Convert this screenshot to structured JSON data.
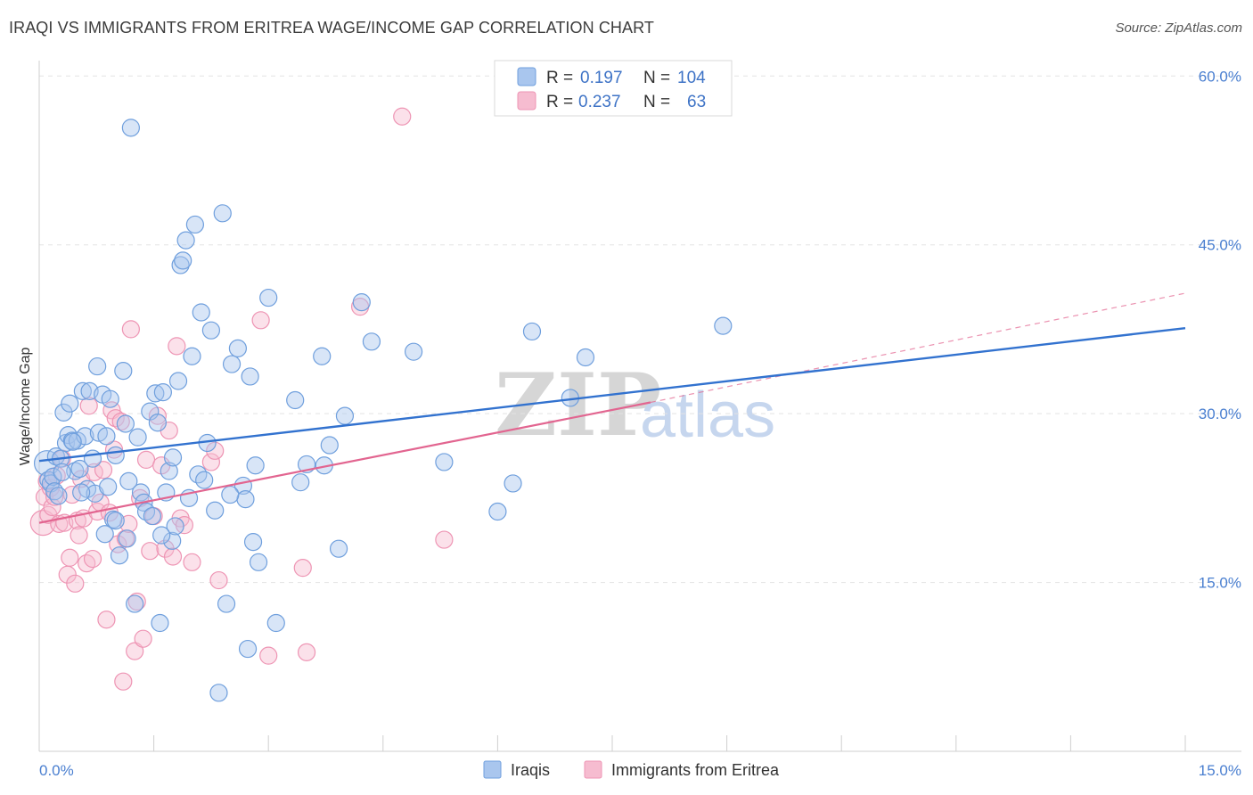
{
  "title": "IRAQI VS IMMIGRANTS FROM ERITREA WAGE/INCOME GAP CORRELATION CHART",
  "source": "Source: ZipAtlas.com",
  "watermark": {
    "part1": "ZIP",
    "part2": "atlas"
  },
  "legend": {
    "r_label": "R =",
    "n_label": "N =",
    "rows": [
      {
        "r": "0.197",
        "n": "104"
      },
      {
        "r": "0.237",
        "n": "63"
      }
    ]
  },
  "bottom_legend": [
    "Iraqis",
    "Immigrants from Eritrea"
  ],
  "colors": {
    "iraqi_fill": "#a9c6ee",
    "iraqi_stroke": "#6f9fdd",
    "iraqi_line": "#3272cf",
    "eritrea_fill": "#f6bcd0",
    "eritrea_stroke": "#ee95b4",
    "eritrea_line": "#e26590",
    "tick_text": "#4a7fd0",
    "grid": "#e3e3e3"
  },
  "chart_data": {
    "type": "scatter",
    "title": "IRAQI VS IMMIGRANTS FROM ERITREA WAGE/INCOME GAP CORRELATION CHART",
    "xlabel": "",
    "ylabel": "Wage/Income Gap",
    "xlim": [
      0,
      15
    ],
    "ylim": [
      0,
      62
    ],
    "x_tick_labels": [
      "0.0%",
      "15.0%"
    ],
    "y_ticks": [
      15,
      30,
      45,
      60
    ],
    "y_tick_labels": [
      "15.0%",
      "30.0%",
      "45.0%",
      "60.0%"
    ],
    "grid": true,
    "legend_position": "top-center",
    "series": [
      {
        "name": "Iraqis",
        "r": 0.197,
        "n": 104,
        "trend": {
          "x": [
            0,
            15
          ],
          "y": [
            25.8,
            37.6
          ]
        },
        "points": [
          [
            0.1,
            25.6
          ],
          [
            0.12,
            24.1
          ],
          [
            0.15,
            23.8
          ],
          [
            0.18,
            24.4
          ],
          [
            0.2,
            23.1
          ],
          [
            0.22,
            26.2
          ],
          [
            0.25,
            22.7
          ],
          [
            0.28,
            26.0
          ],
          [
            0.32,
            30.1
          ],
          [
            0.35,
            27.4
          ],
          [
            0.38,
            28.1
          ],
          [
            0.4,
            30.9
          ],
          [
            0.43,
            27.6
          ],
          [
            0.47,
            24.9
          ],
          [
            0.5,
            27.6
          ],
          [
            0.53,
            25.1
          ],
          [
            0.57,
            32.0
          ],
          [
            0.6,
            28.0
          ],
          [
            0.63,
            23.3
          ],
          [
            0.66,
            32.0
          ],
          [
            0.7,
            26.0
          ],
          [
            0.73,
            22.9
          ],
          [
            0.76,
            34.2
          ],
          [
            0.78,
            28.3
          ],
          [
            0.83,
            31.7
          ],
          [
            0.86,
            19.3
          ],
          [
            0.9,
            23.5
          ],
          [
            0.93,
            31.3
          ],
          [
            0.97,
            20.6
          ],
          [
            1.0,
            26.3
          ],
          [
            1.05,
            17.4
          ],
          [
            1.1,
            33.8
          ],
          [
            1.13,
            29.1
          ],
          [
            1.17,
            24.0
          ],
          [
            1.2,
            55.4
          ],
          [
            1.25,
            13.1
          ],
          [
            1.29,
            27.9
          ],
          [
            1.33,
            23.0
          ],
          [
            1.37,
            22.1
          ],
          [
            1.4,
            21.3
          ],
          [
            1.45,
            30.2
          ],
          [
            1.48,
            20.9
          ],
          [
            1.52,
            31.8
          ],
          [
            1.55,
            29.2
          ],
          [
            1.58,
            11.4
          ],
          [
            1.62,
            31.9
          ],
          [
            1.66,
            23.0
          ],
          [
            1.7,
            24.9
          ],
          [
            1.74,
            18.7
          ],
          [
            1.78,
            20.0
          ],
          [
            1.82,
            32.9
          ],
          [
            1.85,
            43.2
          ],
          [
            1.88,
            43.6
          ],
          [
            1.92,
            45.4
          ],
          [
            1.96,
            22.5
          ],
          [
            2.0,
            35.1
          ],
          [
            2.04,
            46.8
          ],
          [
            2.08,
            24.6
          ],
          [
            2.12,
            39.0
          ],
          [
            2.16,
            24.1
          ],
          [
            2.2,
            27.4
          ],
          [
            2.25,
            37.4
          ],
          [
            2.3,
            21.4
          ],
          [
            2.35,
            5.2
          ],
          [
            2.4,
            47.8
          ],
          [
            2.45,
            13.1
          ],
          [
            2.52,
            34.4
          ],
          [
            2.6,
            35.8
          ],
          [
            2.67,
            23.6
          ],
          [
            2.7,
            22.4
          ],
          [
            2.73,
            9.1
          ],
          [
            2.76,
            33.3
          ],
          [
            2.8,
            18.6
          ],
          [
            2.83,
            25.4
          ],
          [
            2.87,
            16.8
          ],
          [
            3.0,
            40.3
          ],
          [
            3.1,
            11.4
          ],
          [
            3.35,
            31.2
          ],
          [
            3.42,
            23.9
          ],
          [
            3.5,
            25.5
          ],
          [
            3.7,
            35.1
          ],
          [
            3.73,
            25.4
          ],
          [
            3.8,
            27.2
          ],
          [
            3.92,
            18.0
          ],
          [
            4.0,
            29.8
          ],
          [
            4.22,
            39.9
          ],
          [
            4.35,
            36.4
          ],
          [
            4.9,
            35.5
          ],
          [
            5.3,
            25.7
          ],
          [
            6.0,
            21.3
          ],
          [
            6.2,
            23.8
          ],
          [
            6.45,
            37.3
          ],
          [
            6.95,
            31.4
          ],
          [
            7.15,
            35.0
          ],
          [
            8.95,
            37.8
          ],
          [
            0.44,
            27.5
          ],
          [
            0.3,
            24.8
          ],
          [
            1.0,
            20.5
          ],
          [
            1.15,
            18.9
          ],
          [
            0.88,
            28.0
          ],
          [
            1.6,
            19.2
          ],
          [
            0.55,
            23.0
          ],
          [
            2.5,
            22.8
          ],
          [
            1.75,
            26.1
          ]
        ]
      },
      {
        "name": "Immigrants from Eritrea",
        "r": 0.237,
        "n": 63,
        "trend": {
          "x": [
            0,
            8.0
          ],
          "y": [
            20.3,
            31.0
          ]
        },
        "trend_dashed": {
          "x": [
            8.0,
            15
          ],
          "y": [
            31.0,
            40.7
          ]
        },
        "points": [
          [
            0.05,
            20.3
          ],
          [
            0.07,
            22.6
          ],
          [
            0.1,
            24.0
          ],
          [
            0.12,
            21.0
          ],
          [
            0.15,
            23.4
          ],
          [
            0.17,
            21.7
          ],
          [
            0.2,
            22.6
          ],
          [
            0.23,
            24.5
          ],
          [
            0.26,
            20.2
          ],
          [
            0.3,
            26.0
          ],
          [
            0.33,
            20.3
          ],
          [
            0.37,
            15.7
          ],
          [
            0.4,
            17.2
          ],
          [
            0.43,
            22.8
          ],
          [
            0.47,
            14.9
          ],
          [
            0.5,
            20.5
          ],
          [
            0.55,
            24.2
          ],
          [
            0.58,
            20.7
          ],
          [
            0.62,
            16.7
          ],
          [
            0.65,
            30.7
          ],
          [
            0.7,
            17.1
          ],
          [
            0.72,
            24.8
          ],
          [
            0.76,
            21.3
          ],
          [
            0.8,
            22.1
          ],
          [
            0.84,
            25.0
          ],
          [
            0.88,
            11.7
          ],
          [
            0.92,
            21.2
          ],
          [
            0.95,
            30.3
          ],
          [
            1.0,
            29.6
          ],
          [
            1.03,
            18.4
          ],
          [
            1.07,
            29.3
          ],
          [
            1.1,
            6.2
          ],
          [
            1.13,
            18.9
          ],
          [
            1.17,
            20.2
          ],
          [
            1.2,
            37.5
          ],
          [
            1.25,
            8.9
          ],
          [
            1.28,
            13.3
          ],
          [
            1.32,
            22.5
          ],
          [
            1.36,
            10.0
          ],
          [
            1.4,
            25.9
          ],
          [
            1.45,
            17.8
          ],
          [
            1.5,
            20.9
          ],
          [
            1.55,
            29.8
          ],
          [
            1.6,
            25.4
          ],
          [
            1.65,
            18.0
          ],
          [
            1.7,
            28.5
          ],
          [
            1.75,
            17.3
          ],
          [
            1.8,
            36.0
          ],
          [
            1.85,
            20.7
          ],
          [
            1.9,
            20.1
          ],
          [
            2.0,
            16.8
          ],
          [
            2.25,
            25.7
          ],
          [
            2.3,
            26.7
          ],
          [
            2.35,
            15.2
          ],
          [
            2.9,
            38.3
          ],
          [
            3.0,
            8.5
          ],
          [
            3.45,
            16.3
          ],
          [
            3.5,
            8.8
          ],
          [
            4.2,
            39.5
          ],
          [
            4.75,
            56.4
          ],
          [
            5.3,
            18.8
          ],
          [
            0.52,
            19.2
          ],
          [
            0.98,
            26.8
          ]
        ]
      }
    ]
  }
}
